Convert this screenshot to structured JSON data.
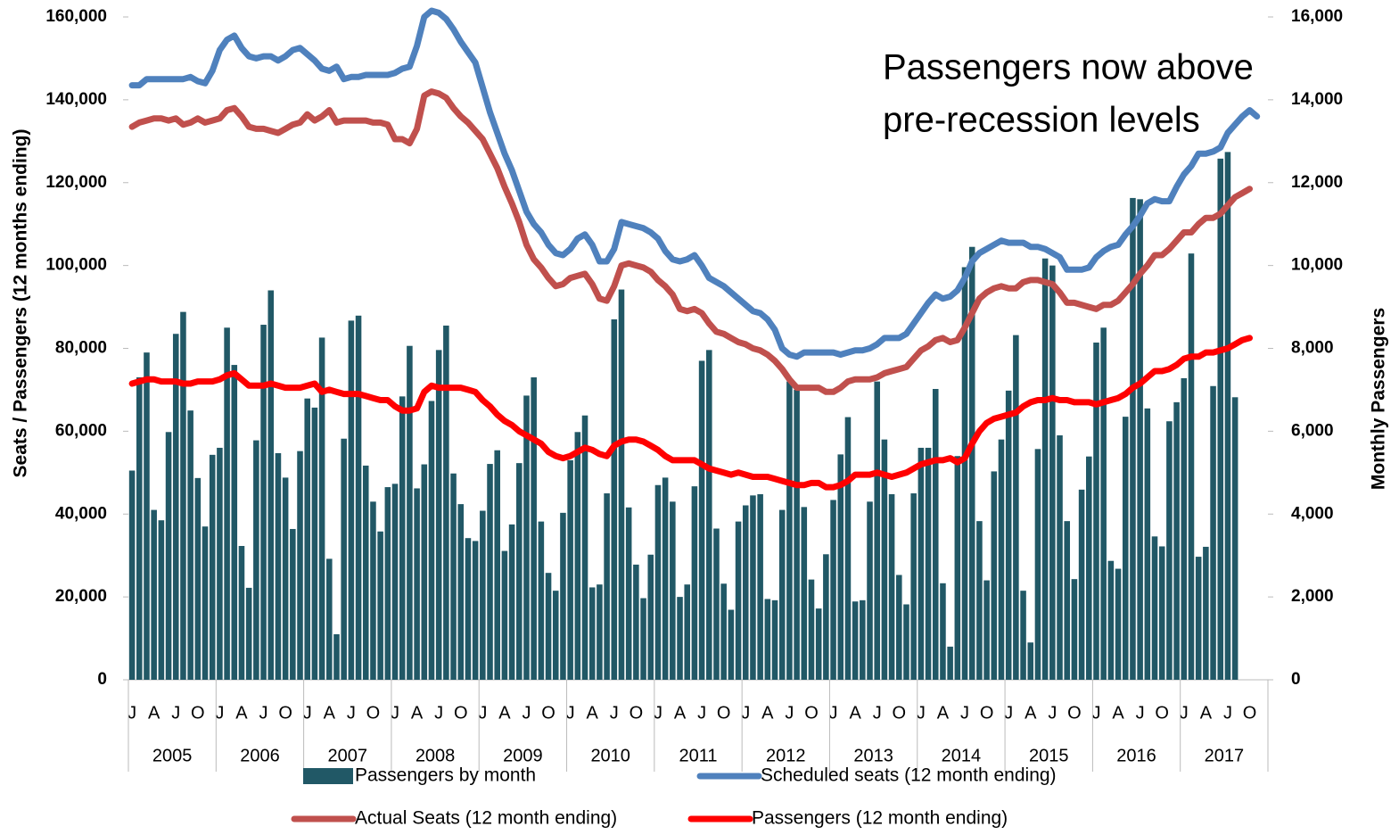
{
  "chart_data": {
    "type": "combo",
    "annotation": [
      "Passengers now above",
      "pre-recession levels"
    ],
    "ylabel": "Seats / Passengers (12 months ending)",
    "y2label": "Monthly Passengers",
    "categories": [
      "J",
      null,
      null,
      "A",
      null,
      null,
      "J",
      null,
      null,
      "O",
      null,
      null,
      "J",
      null,
      null,
      "A",
      null,
      null,
      "J",
      null,
      null,
      "O",
      null,
      null,
      "J",
      null,
      null,
      "A",
      null,
      null,
      "J",
      null,
      null,
      "O",
      null,
      null,
      "J",
      null,
      null,
      "A",
      null,
      null,
      "J",
      null,
      null,
      "O",
      null,
      null,
      "J",
      null,
      null,
      "A",
      null,
      null,
      "J",
      null,
      null,
      "O",
      null,
      null,
      "J",
      null,
      null,
      "A",
      null,
      null,
      "J",
      null,
      null,
      "O",
      null,
      null,
      "J",
      null,
      null,
      "A",
      null,
      null,
      "J",
      null,
      null,
      "O",
      null,
      null,
      "J",
      null,
      null,
      "A",
      null,
      null,
      "J",
      null,
      null,
      "O",
      null,
      null,
      "J",
      null,
      null,
      "A",
      null,
      null,
      "J",
      null,
      null,
      "O",
      null,
      null,
      "J",
      null,
      null,
      "A",
      null,
      null,
      "J",
      null,
      null,
      "O",
      null,
      null,
      "J",
      null,
      null,
      "A",
      null,
      null,
      "J",
      null,
      null,
      "O",
      null,
      null,
      "J",
      null,
      null,
      "A",
      null,
      null,
      "J",
      null,
      null,
      "O",
      null,
      null,
      "J",
      null,
      null,
      "A",
      null,
      null,
      "J",
      null,
      null,
      "O",
      null,
      null
    ],
    "years": [
      "2005",
      "2006",
      "2007",
      "2008",
      "2009",
      "2010",
      "2011",
      "2012",
      "2013",
      "2014",
      "2015",
      "2016",
      "2017"
    ],
    "ylim": [
      0,
      160000
    ],
    "yticks": [
      0,
      {
        "value": 20000,
        "label": "20,000"
      },
      {
        "value": 40000,
        "label": "40,000"
      },
      {
        "value": 60000,
        "label": "60,000"
      },
      {
        "value": 80000,
        "label": "80,000"
      },
      {
        "value": 100000,
        "label": "100,000"
      },
      {
        "value": 120000,
        "label": "120,000"
      },
      {
        "value": 140000,
        "label": "140,000"
      },
      {
        "value": 160000,
        "label": "160,000"
      }
    ],
    "y2lim": [
      0,
      16000
    ],
    "y2ticks": [
      0,
      {
        "value": 2000,
        "label": "2,000"
      },
      {
        "value": 4000,
        "label": "4,000"
      },
      {
        "value": 6000,
        "label": "6,000"
      },
      {
        "value": 8000,
        "label": "8,000"
      },
      {
        "value": 10000,
        "label": "10,000"
      },
      {
        "value": 12000,
        "label": "12,000"
      },
      {
        "value": 14000,
        "label": "14,000"
      },
      {
        "value": 16000,
        "label": "16,000"
      }
    ],
    "series": [
      {
        "name": "Passengers by month",
        "type": "bar",
        "axis": "y2",
        "color": "#215866",
        "values": [
          5050,
          7300,
          7900,
          4100,
          3850,
          5980,
          8350,
          8880,
          6500,
          4870,
          3700,
          5430,
          5600,
          8500,
          7600,
          3230,
          2220,
          5780,
          8570,
          9400,
          5470,
          4880,
          3640,
          5520,
          6790,
          6570,
          8260,
          2920,
          1100,
          5820,
          8670,
          8790,
          5170,
          4300,
          3580,
          4650,
          4730,
          6840,
          8060,
          4620,
          5200,
          6730,
          7960,
          8550,
          4980,
          4240,
          3420,
          3350,
          4080,
          5210,
          5540,
          3110,
          3750,
          5230,
          6860,
          7300,
          3820,
          2580,
          2150,
          4030,
          5300,
          5980,
          6380,
          2230,
          2300,
          4500,
          8700,
          9420,
          4160,
          2780,
          1970,
          3020,
          4700,
          4880,
          4300,
          2000,
          2300,
          4670,
          7700,
          7960,
          3650,
          2320,
          1690,
          3820,
          4210,
          4450,
          4480,
          1950,
          1920,
          4100,
          7200,
          7000,
          4170,
          2420,
          1720,
          3030,
          4340,
          5440,
          6340,
          1890,
          1920,
          4300,
          7200,
          5800,
          4480,
          2530,
          1820,
          4500,
          5600,
          5600,
          7020,
          2330,
          800,
          5400,
          9960,
          10450,
          3830,
          2400,
          5030,
          5800,
          6980,
          8320,
          2150,
          900,
          5570,
          10170,
          10000,
          5900,
          3830,
          2430,
          4590,
          5390,
          8140,
          8500,
          2870,
          2680,
          6350,
          11630,
          11600,
          6550,
          3460,
          3220,
          6240,
          6700,
          7280,
          10290,
          2970,
          3210,
          7090,
          12580,
          12740,
          6820,
          null,
          null,
          null,
          null
        ]
      },
      {
        "name": "Scheduled seats (12 month ending)",
        "type": "line",
        "color": "#4f81bd",
        "values": [
          143500,
          143500,
          145000,
          145000,
          145000,
          145000,
          145000,
          145000,
          145500,
          144500,
          144000,
          147000,
          152000,
          154500,
          155500,
          152500,
          150500,
          150000,
          150500,
          150500,
          149500,
          150500,
          152000,
          152500,
          151000,
          149500,
          147500,
          147000,
          148000,
          145000,
          145500,
          145500,
          146000,
          146000,
          146000,
          146000,
          146500,
          147500,
          148000,
          153000,
          160000,
          161500,
          161000,
          159500,
          157000,
          154000,
          151500,
          149000,
          143000,
          137000,
          132000,
          127000,
          123000,
          118000,
          113000,
          110000,
          108000,
          105000,
          103000,
          102500,
          104000,
          106500,
          107500,
          105000,
          101000,
          101000,
          104000,
          110500,
          110000,
          109500,
          109000,
          108000,
          106500,
          103500,
          101500,
          101000,
          101500,
          102500,
          100000,
          97000,
          96000,
          95000,
          93500,
          92000,
          90500,
          89000,
          88500,
          87000,
          84500,
          80000,
          78500,
          78000,
          79000,
          79000,
          79000,
          79000,
          79000,
          78500,
          79000,
          79500,
          79500,
          80000,
          81000,
          82500,
          82500,
          82500,
          83500,
          86000,
          88500,
          91000,
          93000,
          92000,
          92500,
          94000,
          97000,
          101000,
          103000,
          104000,
          105000,
          106000,
          105500,
          105500,
          105500,
          104500,
          104500,
          104000,
          103000,
          102000,
          99000,
          99000,
          99000,
          99500,
          102000,
          103500,
          104500,
          105000,
          107500,
          109500,
          112000,
          115000,
          116000,
          115500,
          115500,
          119000,
          122000,
          124000,
          127000,
          127000,
          127500,
          128500,
          132000,
          134000,
          136000,
          137500,
          136000,
          null
        ]
      },
      {
        "name": "Actual Seats (12 month ending)",
        "type": "line",
        "color": "#c0504d",
        "values": [
          133500,
          134500,
          135000,
          135500,
          135500,
          135000,
          135500,
          134000,
          134500,
          135500,
          134500,
          135000,
          135500,
          137500,
          138000,
          136000,
          133500,
          133000,
          133000,
          132500,
          132000,
          133000,
          134000,
          134500,
          136500,
          135000,
          136000,
          137500,
          134500,
          135000,
          135000,
          135000,
          135000,
          134500,
          134500,
          134000,
          130500,
          130500,
          129500,
          133000,
          141000,
          142000,
          141500,
          140500,
          138000,
          136000,
          134500,
          132500,
          130500,
          127000,
          123500,
          119000,
          115000,
          110500,
          105000,
          101500,
          99500,
          97000,
          95000,
          95500,
          97000,
          97500,
          98000,
          95500,
          92000,
          91500,
          95000,
          100000,
          100500,
          100000,
          99500,
          98500,
          96500,
          95000,
          93000,
          89500,
          89000,
          89500,
          88500,
          86000,
          84000,
          83500,
          82500,
          81500,
          81000,
          80000,
          79500,
          78500,
          77000,
          75000,
          72500,
          70500,
          70500,
          70500,
          70500,
          69500,
          69500,
          70500,
          72000,
          72500,
          72500,
          72500,
          73000,
          74000,
          74500,
          75000,
          75500,
          77500,
          79500,
          80500,
          82000,
          82500,
          81500,
          82000,
          85000,
          88500,
          92000,
          93500,
          94500,
          95000,
          94500,
          94500,
          96000,
          96500,
          96500,
          96000,
          95500,
          93500,
          91000,
          91000,
          90500,
          90000,
          89500,
          90500,
          90500,
          91500,
          93500,
          95500,
          98000,
          100000,
          102500,
          102500,
          104000,
          106000,
          108000,
          108000,
          110000,
          111500,
          111500,
          112500,
          114500,
          116500,
          117500,
          118500,
          null,
          null
        ]
      },
      {
        "name": "Passengers (12 month ending)",
        "type": "line",
        "color": "#ff0000",
        "values": [
          71500,
          72000,
          72500,
          72500,
          72000,
          72000,
          72000,
          71500,
          71500,
          72000,
          72000,
          72000,
          72500,
          73500,
          74000,
          72500,
          71000,
          71000,
          71000,
          71500,
          71000,
          70500,
          70500,
          70500,
          71000,
          71500,
          69500,
          70000,
          69500,
          69000,
          69000,
          69000,
          68500,
          68000,
          67500,
          67500,
          66000,
          65000,
          65000,
          65500,
          69500,
          71000,
          70500,
          70500,
          70500,
          70500,
          70000,
          69500,
          67500,
          66000,
          64000,
          62500,
          61500,
          60000,
          59000,
          58000,
          57000,
          55000,
          54000,
          53500,
          54000,
          55000,
          56000,
          55500,
          54500,
          54000,
          56500,
          57500,
          58000,
          58000,
          57500,
          56500,
          55500,
          54000,
          53000,
          53000,
          53000,
          53000,
          52000,
          51000,
          50500,
          50000,
          49500,
          50000,
          49500,
          49000,
          49000,
          49000,
          48500,
          48000,
          47500,
          47000,
          47000,
          47500,
          47500,
          46500,
          46500,
          47000,
          48000,
          49500,
          49500,
          49500,
          50000,
          49500,
          49000,
          49500,
          50000,
          51000,
          52000,
          52500,
          53000,
          53000,
          53500,
          52500,
          53500,
          57000,
          60000,
          62000,
          63000,
          63500,
          64000,
          64500,
          66000,
          67000,
          67500,
          67500,
          68000,
          67500,
          67500,
          67000,
          67000,
          67000,
          66500,
          67000,
          67500,
          68000,
          69000,
          70500,
          71500,
          73000,
          74500,
          74500,
          75000,
          76000,
          77500,
          78000,
          78000,
          79000,
          79000,
          79500,
          80000,
          81000,
          82000,
          82500,
          null,
          null
        ]
      }
    ]
  }
}
